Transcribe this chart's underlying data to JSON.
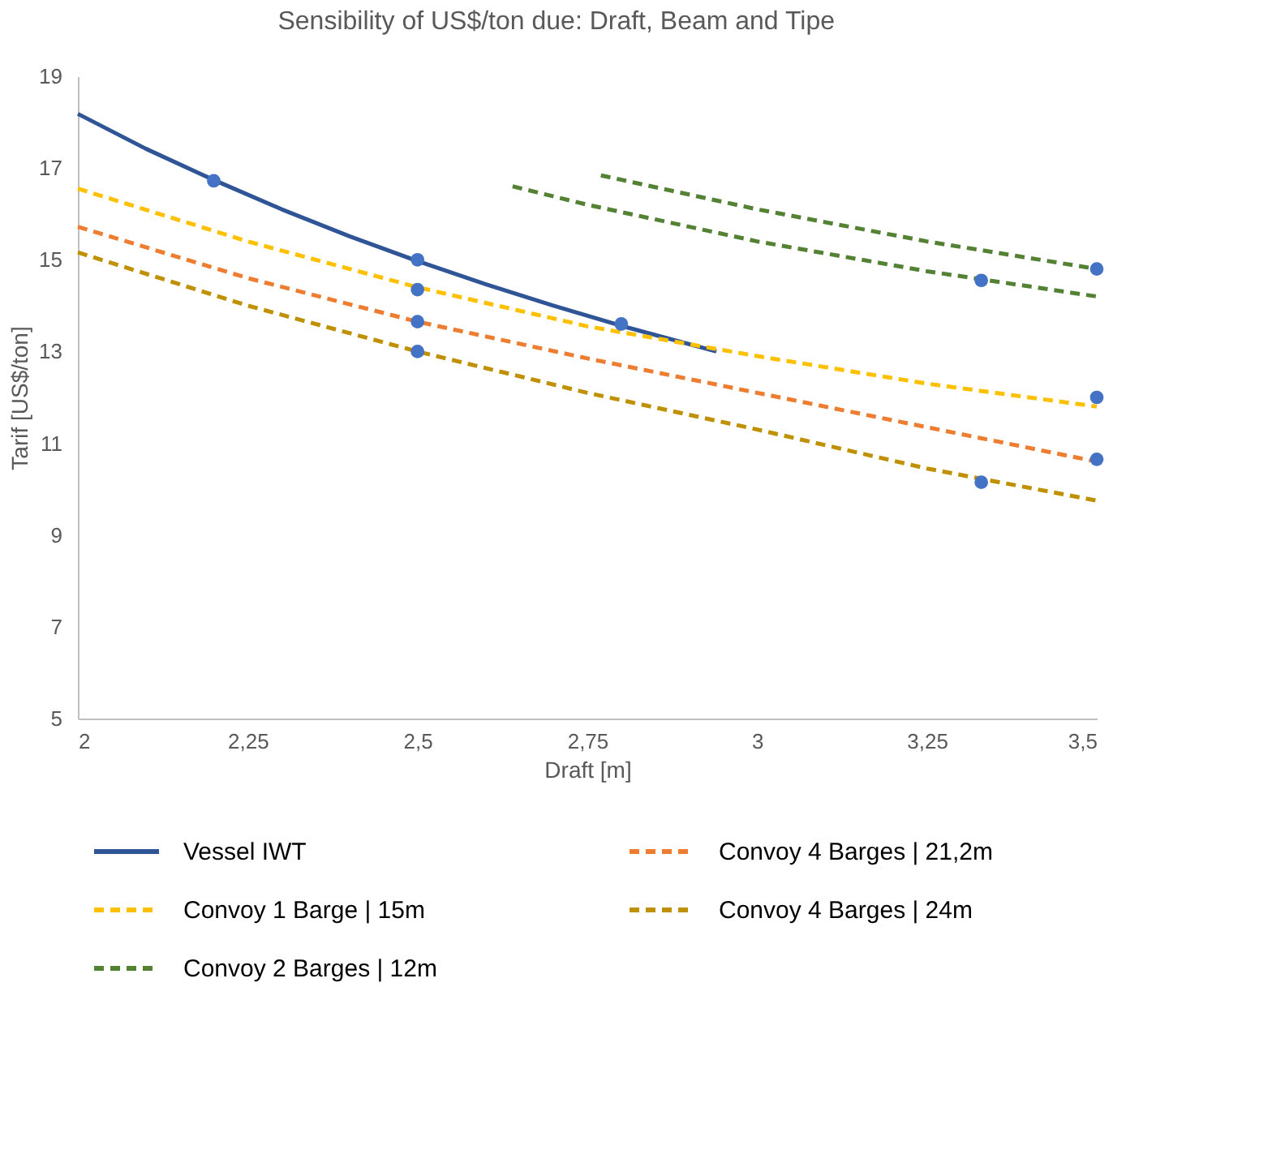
{
  "chart_data": {
    "type": "line",
    "title": "Sensibility of US$/ton due: Draft, Beam and Tipe",
    "xlabel": "Draft [m]",
    "ylabel": "Tarif [US$/ton]",
    "xlim": [
      2,
      3.5
    ],
    "xticks": [
      2,
      {
        "value": 2.25,
        "label": "2,25"
      },
      {
        "value": 2.5,
        "label": "2,5"
      },
      {
        "value": 2.75,
        "label": "2,75"
      },
      3,
      {
        "value": 3.25,
        "label": "3,25"
      },
      {
        "value": 3.5,
        "label": "3,5"
      }
    ],
    "ylim": [
      5,
      19
    ],
    "yticks": [
      5,
      7,
      9,
      11,
      13,
      15,
      17,
      19
    ],
    "grid": false,
    "legend": "bottom",
    "series": [
      {
        "name": "Vessel IWT",
        "color": "#2f5597",
        "line_style": "solid",
        "x": [
          2,
          2.1,
          2.2,
          2.3,
          2.4,
          2.5,
          2.6,
          2.7,
          2.8,
          2.94
        ],
        "values": [
          18.18,
          17.42,
          16.74,
          16.1,
          15.51,
          14.97,
          14.47,
          14.0,
          13.56,
          13.0
        ]
      },
      {
        "name": "Convoy 1 Barge | 15m",
        "color": "#ffc000",
        "line_style": "dashed",
        "x": [
          2,
          2.25,
          2.5,
          2.75,
          3,
          3.25,
          3.5
        ],
        "values": [
          16.55,
          15.4,
          14.4,
          13.55,
          12.9,
          12.3,
          11.8
        ]
      },
      {
        "name": "Convoy 2 Barges | 12m",
        "color": "#548235",
        "line_style": "dashed",
        "x": [
          2.77,
          3,
          3.25,
          3.5
        ],
        "values": [
          16.84,
          16.1,
          15.4,
          14.8
        ]
      },
      {
        "color": "#548235",
        "line_style": "dashed",
        "x": [
          2.64,
          2.75,
          3,
          3.25,
          3.5
        ],
        "values": [
          16.6,
          16.2,
          15.4,
          14.75,
          14.2
        ]
      },
      {
        "name": "Convoy 4 Barges | 21,2m",
        "color": "#ed7d31",
        "line_style": "dashed",
        "x": [
          2,
          2.25,
          2.5,
          2.75,
          3,
          3.25,
          3.5
        ],
        "values": [
          15.72,
          14.6,
          13.65,
          12.85,
          12.1,
          11.35,
          10.6
        ]
      },
      {
        "name": "Convoy 4 Barges | 24m",
        "color": "#bf9000",
        "line_style": "dashed",
        "x": [
          2,
          2.25,
          2.5,
          2.75,
          3,
          3.25,
          3.5
        ],
        "values": [
          15.16,
          14.0,
          13.0,
          12.1,
          11.3,
          10.45,
          9.75
        ]
      },
      {
        "type": "scatter",
        "marker": "circle",
        "color": "#4472c4",
        "x": [
          2.2,
          2.5,
          2.5,
          2.5,
          2.5,
          2.8,
          3.33,
          3.5,
          3.5,
          3.5,
          3.33
        ],
        "values": [
          16.72,
          15.0,
          14.35,
          13.65,
          13.0,
          13.6,
          14.55,
          14.8,
          12.0,
          10.65,
          10.15
        ]
      }
    ]
  }
}
